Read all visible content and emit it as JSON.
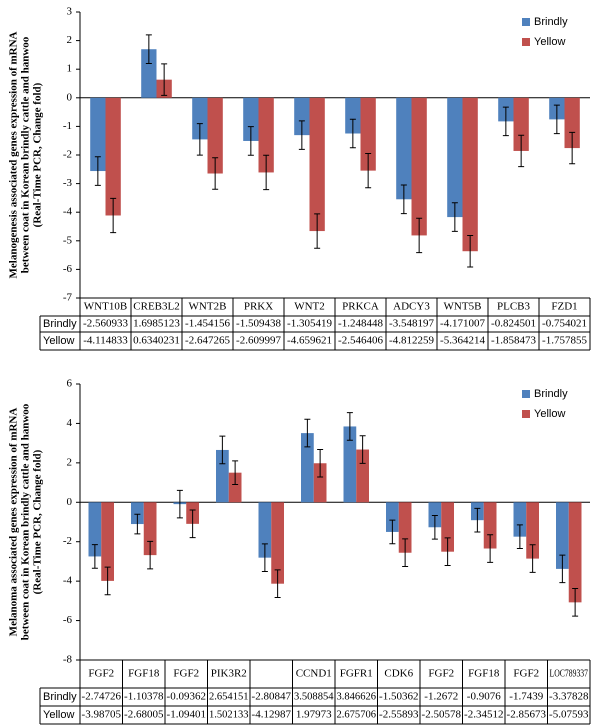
{
  "chart_data": [
    {
      "type": "bar",
      "ylabel": [
        "Melanogenesis associated genes expression of mRNA",
        "between coat in Korean brindly cattle and hanwoo",
        "(Real-Time PCR, Change fold)"
      ],
      "categories": [
        "WNT10B",
        "CREB3L2",
        "WNT2B",
        "PRKX",
        "WNT2",
        "PRKCA",
        "ADCY3",
        "WNT5B",
        "PLCB3",
        "FZD1"
      ],
      "series": [
        {
          "name": "Brindly",
          "color": "#4f81bd",
          "values": [
            -2.560933,
            1.6985123,
            -1.454156,
            -1.509438,
            -1.305419,
            -1.248448,
            -3.548197,
            -4.171007,
            -0.824501,
            -0.754021
          ],
          "errors": [
            0.5,
            0.5,
            0.55,
            0.5,
            0.5,
            0.5,
            0.5,
            0.5,
            0.5,
            0.5
          ]
        },
        {
          "name": "Yellow",
          "color": "#c0504d",
          "values": [
            -4.114833,
            0.6340231,
            -2.647265,
            -2.609997,
            -4.659621,
            -2.546406,
            -4.812259,
            -5.364214,
            -1.858473,
            -1.757855
          ],
          "errors": [
            0.6,
            0.55,
            0.55,
            0.6,
            0.6,
            0.6,
            0.6,
            0.55,
            0.55,
            0.55
          ]
        }
      ],
      "ylim": [
        -7,
        3
      ],
      "yticks": [
        -7,
        -6,
        -5,
        -4,
        -3,
        -2,
        -1,
        0,
        1,
        2,
        3
      ],
      "grid": false,
      "legend": "top-right",
      "data_table": true
    },
    {
      "type": "bar",
      "ylabel": [
        "Melanoma associated genes expression of mRNA",
        "between coat in Korean brindly cattle and hanwoo",
        "(Real-Time PCR, Change fold)"
      ],
      "categories": [
        "FGF2",
        "FGF18",
        "FGF2",
        "PIK3R2",
        null,
        "CCND1",
        "FGFR1",
        "CDK6",
        "FGF2",
        "FGF18",
        "FGF2",
        "LOC789337"
      ],
      "series": [
        {
          "name": "Brindly",
          "color": "#4f81bd",
          "values": [
            -2.74726,
            -1.10378,
            -0.09362,
            2.654151,
            -2.80847,
            3.508854,
            3.846626,
            -1.50362,
            -1.2672,
            -0.9076,
            -1.7439,
            -3.37828
          ],
          "errors": [
            0.6,
            0.5,
            0.7,
            0.7,
            0.7,
            0.7,
            0.7,
            0.6,
            0.6,
            0.6,
            0.6,
            0.7
          ]
        },
        {
          "name": "Yellow",
          "color": "#c0504d",
          "values": [
            -3.98705,
            -2.68005,
            -1.09401,
            1.502133,
            -4.12987,
            1.97973,
            2.675706,
            -2.55893,
            -2.50578,
            -2.34512,
            -2.85673,
            -5.07593
          ],
          "errors": [
            0.7,
            0.7,
            0.7,
            0.6,
            0.7,
            0.7,
            0.7,
            0.7,
            0.7,
            0.7,
            0.7,
            0.7
          ]
        }
      ],
      "ylim": [
        -8,
        6
      ],
      "yticks": [
        -8,
        -6,
        -4,
        -2,
        0,
        2,
        4,
        6
      ],
      "grid": false,
      "legend": "top-right",
      "data_table": true
    }
  ]
}
